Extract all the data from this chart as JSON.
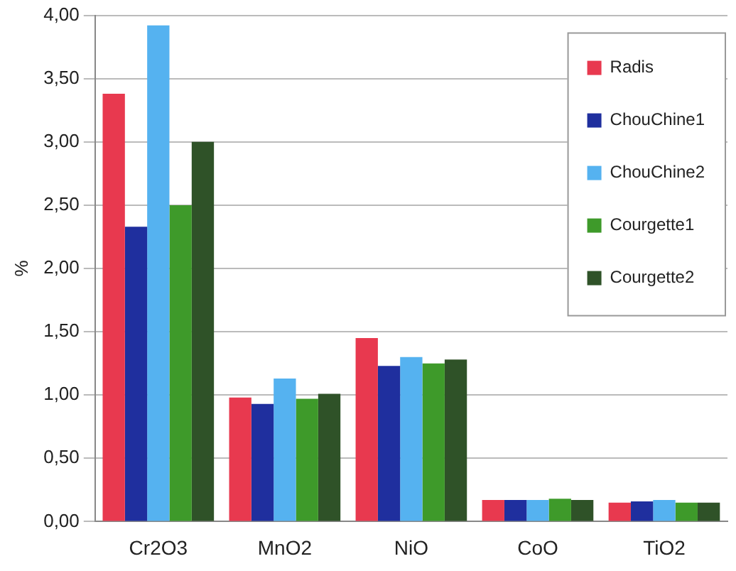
{
  "chart_data": {
    "type": "bar",
    "ylabel": "%",
    "categories": [
      "Cr2O3",
      "MnO2",
      "NiO",
      "CoO",
      "TiO2"
    ],
    "series": [
      {
        "name": "Radis",
        "color": "#e8394f",
        "values": [
          3.38,
          0.98,
          1.45,
          0.17,
          0.15
        ]
      },
      {
        "name": "ChouChine1",
        "color": "#1f2f9e",
        "values": [
          2.33,
          0.93,
          1.23,
          0.17,
          0.16
        ]
      },
      {
        "name": "ChouChine2",
        "color": "#55b2f0",
        "values": [
          3.92,
          1.13,
          1.3,
          0.17,
          0.17
        ]
      },
      {
        "name": "Courgette1",
        "color": "#3e9a2a",
        "values": [
          2.5,
          0.97,
          1.25,
          0.18,
          0.15
        ]
      },
      {
        "name": "Courgette2",
        "color": "#2f5228",
        "values": [
          3.0,
          1.01,
          1.28,
          0.17,
          0.15
        ]
      }
    ],
    "ylim": [
      0,
      4
    ],
    "yticks": [
      {
        "value": 0,
        "label": "0,00"
      },
      {
        "value": 0.5,
        "label": "0,50"
      },
      {
        "value": 1,
        "label": "1,00"
      },
      {
        "value": 1.5,
        "label": "1,50"
      },
      {
        "value": 2,
        "label": "2,00"
      },
      {
        "value": 2.5,
        "label": "2,50"
      },
      {
        "value": 3,
        "label": "3,00"
      },
      {
        "value": 3.5,
        "label": "3,50"
      },
      {
        "value": 4,
        "label": "4,00"
      }
    ],
    "grid": "y",
    "legend": "top right"
  }
}
